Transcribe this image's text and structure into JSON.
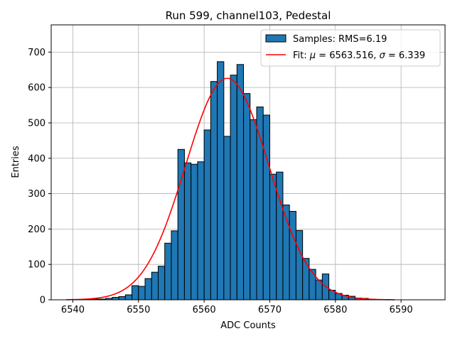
{
  "chart_data": {
    "type": "bar",
    "title": "Run 599, channel103, Pedestal",
    "xlabel": "ADC Counts",
    "ylabel": "Entries",
    "xlim": [
      6536.7,
      6596.7
    ],
    "ylim": [
      0,
      777
    ],
    "xticks": [
      6540,
      6550,
      6560,
      6570,
      6580,
      6590
    ],
    "yticks": [
      0,
      100,
      200,
      300,
      400,
      500,
      600,
      700
    ],
    "grid": true,
    "legend_placement": "top-right",
    "bin_width": 1,
    "bin_start": 6540,
    "values": [
      0,
      1,
      1,
      2,
      2,
      4,
      7,
      9,
      14,
      40,
      38,
      60,
      78,
      95,
      160,
      195,
      425,
      387,
      383,
      390,
      480,
      617,
      673,
      462,
      635,
      665,
      583,
      509,
      545,
      522,
      355,
      361,
      268,
      250,
      196,
      117,
      86,
      56,
      73,
      27,
      18,
      13,
      10,
      5,
      4,
      2,
      1
    ],
    "series": [
      {
        "name": "Samples: RMS=6.19",
        "kind": "histogram",
        "color": "#1f77b4",
        "edge_color": "#000000"
      },
      {
        "name_prefix": "Fit: ",
        "mu_symbol": "μ",
        "mu_text": " = 6563.516, ",
        "sigma_symbol": "σ",
        "sigma_text": " = 6.339",
        "kind": "gaussian",
        "color": "#ff0000",
        "mu": 6563.516,
        "sigma": 6.339,
        "amplitude": 626,
        "x_range": [
          6539.0,
          6589.0
        ]
      }
    ]
  }
}
